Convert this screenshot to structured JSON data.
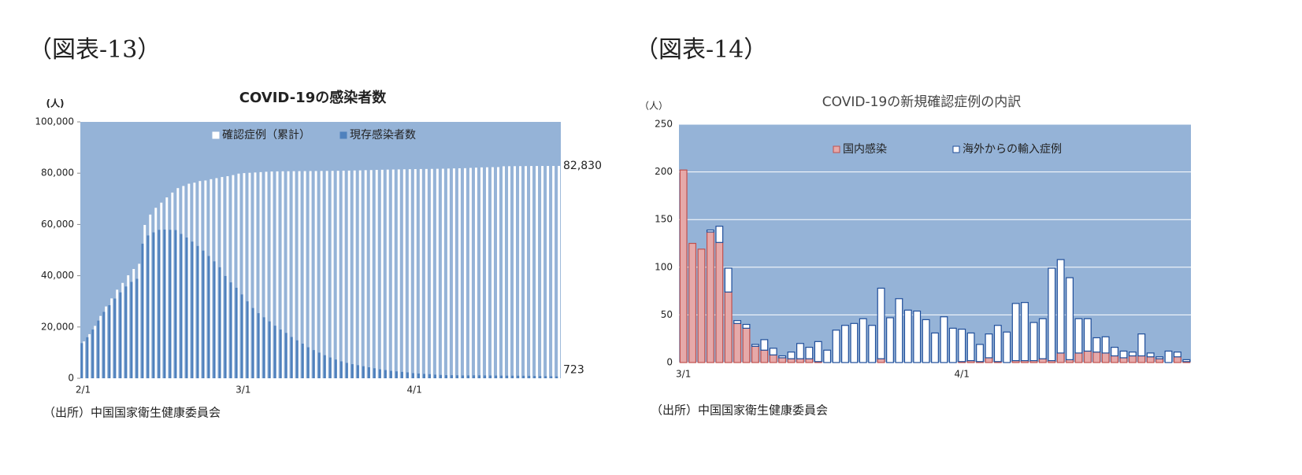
{
  "chart_data": [
    {
      "type": "bar",
      "barmode": "overlay",
      "figure_label": "（図表-13）",
      "title": "COVID-19の感染者数",
      "y_label": "(人)",
      "source": "（出所）中国国家衛生健康委員会",
      "plot_background": "#95b3d7",
      "grid": false,
      "legend": "top",
      "categories": [
        "2/1",
        null,
        null,
        null,
        null,
        null,
        null,
        null,
        null,
        null,
        null,
        null,
        null,
        null,
        null,
        null,
        null,
        null,
        null,
        null,
        null,
        null,
        null,
        null,
        null,
        null,
        null,
        null,
        null,
        "3/1",
        null,
        null,
        null,
        null,
        null,
        null,
        null,
        null,
        null,
        null,
        null,
        null,
        null,
        null,
        null,
        null,
        null,
        null,
        null,
        null,
        null,
        null,
        null,
        null,
        null,
        null,
        null,
        null,
        null,
        null,
        "4/1",
        null,
        null,
        null,
        null,
        null,
        null,
        null,
        null,
        null,
        null,
        null,
        null,
        null,
        null,
        null,
        null,
        null,
        null,
        null,
        null,
        null,
        null,
        null,
        null,
        null,
        null
      ],
      "ylim": [
        0,
        100000
      ],
      "yticks": [
        0,
        {
          "value": 20000,
          "label": "20,000"
        },
        {
          "value": 40000,
          "label": "40,000"
        },
        {
          "value": 60000,
          "label": "60,000"
        },
        {
          "value": 80000,
          "label": "80,000"
        },
        {
          "value": 100000,
          "label": "100,000"
        }
      ],
      "series": [
        {
          "name": "確認症例（累計）",
          "color": "#ffffff",
          "values": [
            14380,
            17205,
            20438,
            24324,
            28018,
            31161,
            34546,
            37198,
            40171,
            42638,
            44653,
            59804,
            63851,
            66492,
            68500,
            70548,
            72436,
            74185,
            75002,
            75891,
            76288,
            76936,
            77150,
            77658,
            78064,
            78497,
            78824,
            79251,
            79824,
            80026,
            80151,
            80270,
            80409,
            80552,
            80651,
            80695,
            80735,
            80754,
            80778,
            80793,
            80813,
            80824,
            80844,
            80860,
            80881,
            80894,
            80928,
            80967,
            81008,
            81054,
            81093,
            81171,
            81218,
            81285,
            81340,
            81394,
            81439,
            81470,
            81518,
            81554,
            81589,
            81620,
            81639,
            81669,
            81708,
            81740,
            81802,
            81865,
            81907,
            81953,
            82052,
            82160,
            82249,
            82295,
            82341,
            82367,
            82692,
            82719,
            82735,
            82747,
            82758,
            82788,
            82798,
            82804,
            82816,
            82827,
            82830
          ],
          "value_labels": [
            null,
            null,
            null,
            null,
            null,
            null,
            null,
            null,
            null,
            null,
            null,
            null,
            null,
            null,
            null,
            null,
            null,
            null,
            null,
            null,
            null,
            null,
            null,
            null,
            null,
            null,
            null,
            null,
            null,
            null,
            null,
            null,
            null,
            null,
            null,
            null,
            null,
            null,
            null,
            null,
            null,
            null,
            null,
            null,
            null,
            null,
            null,
            null,
            null,
            null,
            null,
            null,
            null,
            null,
            null,
            null,
            null,
            null,
            null,
            null,
            null,
            null,
            null,
            null,
            null,
            null,
            null,
            null,
            null,
            null,
            null,
            null,
            null,
            null,
            null,
            null,
            null,
            null,
            null,
            null,
            null,
            null,
            null,
            null,
            null,
            null,
            "82,830"
          ]
        },
        {
          "name": "現存感染者数",
          "color": "#4f81bd",
          "values": [
            13700,
            16000,
            19000,
            22500,
            25900,
            28500,
            31100,
            33500,
            35800,
            37600,
            38800,
            52500,
            55700,
            56900,
            57900,
            58000,
            57900,
            57800,
            56300,
            54900,
            53300,
            51600,
            49800,
            47700,
            45600,
            43300,
            39900,
            37400,
            35300,
            32700,
            30000,
            27400,
            25400,
            23800,
            22200,
            20500,
            19000,
            17700,
            16100,
            14800,
            13500,
            12100,
            11000,
            10000,
            9000,
            8100,
            7300,
            6600,
            6000,
            5500,
            5100,
            4700,
            4300,
            3900,
            3500,
            3200,
            2900,
            2700,
            2500,
            2300,
            2000,
            1860,
            1700,
            1600,
            1400,
            1300,
            1200,
            1200,
            1150,
            1100,
            1100,
            1150,
            1140,
            1100,
            1070,
            1050,
            1030,
            1000,
            1000,
            990,
            970,
            950,
            880,
            840,
            800,
            760,
            723
          ],
          "value_labels": [
            null,
            null,
            null,
            null,
            null,
            null,
            null,
            null,
            null,
            null,
            null,
            null,
            null,
            null,
            null,
            null,
            null,
            null,
            null,
            null,
            null,
            null,
            null,
            null,
            null,
            null,
            null,
            null,
            null,
            null,
            null,
            null,
            null,
            null,
            null,
            null,
            null,
            null,
            null,
            null,
            null,
            null,
            null,
            null,
            null,
            null,
            null,
            null,
            null,
            null,
            null,
            null,
            null,
            null,
            null,
            null,
            null,
            null,
            null,
            null,
            null,
            null,
            null,
            null,
            null,
            null,
            null,
            null,
            null,
            null,
            null,
            null,
            null,
            null,
            null,
            null,
            null,
            null,
            null,
            null,
            null,
            null,
            null,
            null,
            null,
            null,
            "723"
          ]
        }
      ]
    },
    {
      "type": "bar",
      "barmode": "stack",
      "figure_label": "（図表-14）",
      "title": "COVID-19の新規確認症例の内訳",
      "y_label": "（人）",
      "source": "（出所）中国国家衛生健康委員会",
      "plot_background": "#95b3d7",
      "grid": true,
      "legend": "top",
      "categories": [
        "3/1",
        null,
        null,
        null,
        null,
        null,
        null,
        null,
        null,
        null,
        null,
        null,
        null,
        null,
        null,
        null,
        null,
        null,
        null,
        null,
        null,
        null,
        null,
        null,
        null,
        null,
        null,
        null,
        null,
        null,
        null,
        "4/1",
        null,
        null,
        null,
        null,
        null,
        null,
        null,
        null,
        null,
        null,
        null,
        null,
        null,
        null,
        null,
        null,
        null,
        null,
        null,
        null,
        null,
        null,
        null,
        null,
        null
      ],
      "ylim": [
        0,
        250
      ],
      "yticks": [
        0,
        50,
        100,
        150,
        200,
        250
      ],
      "series": [
        {
          "name": "国内感染",
          "color": "#e6a9a9",
          "edgecolor": "#c0504d",
          "values": [
            202,
            125,
            119,
            137,
            126,
            74,
            41,
            36,
            17,
            13,
            8,
            5,
            4,
            4,
            4,
            1,
            0,
            0,
            0,
            0,
            0,
            0,
            4,
            0,
            0,
            0,
            0,
            0,
            0,
            0,
            0,
            1,
            2,
            1,
            5,
            1,
            0,
            2,
            2,
            2,
            4,
            2,
            10,
            3,
            10,
            12,
            11,
            10,
            7,
            5,
            7,
            7,
            6,
            4,
            0,
            6,
            1
          ]
        },
        {
          "name": "海外からの輸入症例",
          "color": "#ffffff",
          "edgecolor": "#1f4e9a",
          "values": [
            0,
            0,
            0,
            2,
            17,
            25,
            3,
            4,
            2,
            11,
            7,
            2,
            7,
            16,
            12,
            21,
            13,
            34,
            39,
            41,
            46,
            39,
            74,
            47,
            67,
            55,
            54,
            45,
            31,
            48,
            36,
            34,
            29,
            18,
            25,
            38,
            32,
            60,
            61,
            40,
            42,
            97,
            98,
            86,
            36,
            34,
            15,
            17,
            9,
            7,
            4,
            23,
            4,
            2,
            12,
            5,
            2
          ]
        }
      ]
    }
  ]
}
